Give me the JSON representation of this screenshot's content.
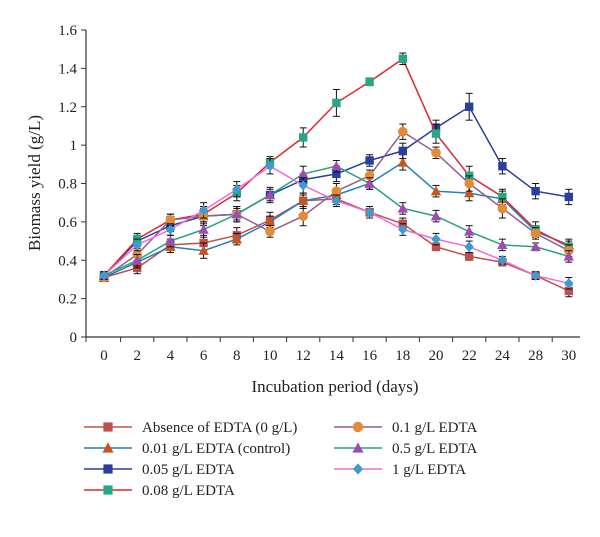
{
  "chart_data": {
    "type": "line",
    "title": "",
    "xlabel": "Incubation period (days)",
    "ylabel": "Biomass yield (g/L)",
    "x_categories": [
      "0",
      "2",
      "4",
      "6",
      "8",
      "10",
      "12",
      "14",
      "16",
      "18",
      "20",
      "22",
      "24",
      "28",
      "30"
    ],
    "ylim": [
      0,
      1.6
    ],
    "yticks": [
      "0",
      "0.2",
      "0.4",
      "0.6",
      "0.8",
      "1",
      "1.2",
      "1.4",
      "1.6"
    ],
    "grid": false,
    "legend_position": "bottom",
    "series": [
      {
        "name": "Absence of EDTA (0 g/L)",
        "color": "#c0504d",
        "marker": "square",
        "values": [
          0.31,
          0.36,
          0.48,
          0.49,
          0.53,
          0.61,
          0.71,
          0.72,
          0.65,
          0.59,
          0.47,
          0.42,
          0.39,
          0.32,
          0.24
        ],
        "errors": [
          0.02,
          0.03,
          0.03,
          0.04,
          0.04,
          0.04,
          0.03,
          0.03,
          0.02,
          0.03,
          0.02,
          0.02,
          0.02,
          0.02,
          0.03
        ]
      },
      {
        "name": "0.01 g/L EDTA (control)",
        "color": "#1f7fbf",
        "marker": "triangle",
        "marker_color": "#c8561b",
        "values": [
          0.31,
          0.39,
          0.47,
          0.45,
          0.51,
          0.6,
          0.71,
          0.74,
          0.8,
          0.91,
          0.76,
          0.75,
          0.72,
          0.55,
          0.48
        ],
        "errors": [
          0.02,
          0.03,
          0.03,
          0.04,
          0.03,
          0.03,
          0.04,
          0.03,
          0.03,
          0.04,
          0.03,
          0.04,
          0.04,
          0.03,
          0.03
        ]
      },
      {
        "name": "0.05 g/L EDTA",
        "color": "#2a3f9d",
        "marker": "square",
        "values": [
          0.32,
          0.5,
          0.58,
          0.63,
          0.64,
          0.74,
          0.82,
          0.85,
          0.92,
          0.97,
          1.09,
          1.2,
          0.89,
          0.76,
          0.73
        ],
        "errors": [
          0.02,
          0.03,
          0.03,
          0.04,
          0.03,
          0.04,
          0.03,
          0.04,
          0.03,
          0.04,
          0.04,
          0.07,
          0.04,
          0.04,
          0.04
        ]
      },
      {
        "name": "0.08 g/L EDTA",
        "color": "#e2262a",
        "marker": "square",
        "marker_color": "#26a884",
        "values": [
          0.32,
          0.51,
          0.61,
          0.64,
          0.75,
          0.91,
          1.04,
          1.22,
          1.33,
          1.45,
          1.06,
          0.84,
          0.73,
          0.56,
          0.47
        ],
        "errors": [
          0.02,
          0.03,
          0.03,
          0.04,
          0.04,
          0.03,
          0.05,
          0.07,
          0.02,
          0.03,
          0.05,
          0.05,
          0.04,
          0.04,
          0.03
        ]
      },
      {
        "name": "0.1 g/L EDTA",
        "color": "#8f5f92",
        "marker": "circle",
        "marker_color": "#e38b35",
        "values": [
          0.31,
          0.43,
          0.61,
          0.63,
          0.64,
          0.55,
          0.63,
          0.76,
          0.84,
          1.07,
          0.96,
          0.8,
          0.67,
          0.54,
          0.45
        ],
        "errors": [
          0.02,
          0.03,
          0.03,
          0.05,
          0.04,
          0.03,
          0.05,
          0.04,
          0.03,
          0.04,
          0.03,
          0.04,
          0.05,
          0.03,
          0.03
        ]
      },
      {
        "name": "0.5 g/L EDTA",
        "color": "#2aa37a",
        "marker": "triangle",
        "marker_color": "#a04ab5",
        "values": [
          0.32,
          0.4,
          0.5,
          0.56,
          0.64,
          0.74,
          0.85,
          0.89,
          0.8,
          0.67,
          0.63,
          0.55,
          0.48,
          0.47,
          0.42
        ],
        "errors": [
          0.02,
          0.03,
          0.03,
          0.04,
          0.04,
          0.03,
          0.04,
          0.03,
          0.03,
          0.03,
          0.03,
          0.03,
          0.03,
          0.02,
          0.03
        ]
      },
      {
        "name": "1 g/L EDTA",
        "color": "#ee6edb",
        "marker": "diamond",
        "marker_color": "#3c9bd3",
        "values": [
          0.32,
          0.48,
          0.56,
          0.66,
          0.77,
          0.89,
          0.79,
          0.71,
          0.65,
          0.56,
          0.51,
          0.47,
          0.4,
          0.32,
          0.28
        ],
        "errors": [
          0.02,
          0.03,
          0.03,
          0.04,
          0.04,
          0.04,
          0.04,
          0.03,
          0.03,
          0.03,
          0.03,
          0.03,
          0.02,
          0.02,
          0.03
        ]
      }
    ]
  }
}
